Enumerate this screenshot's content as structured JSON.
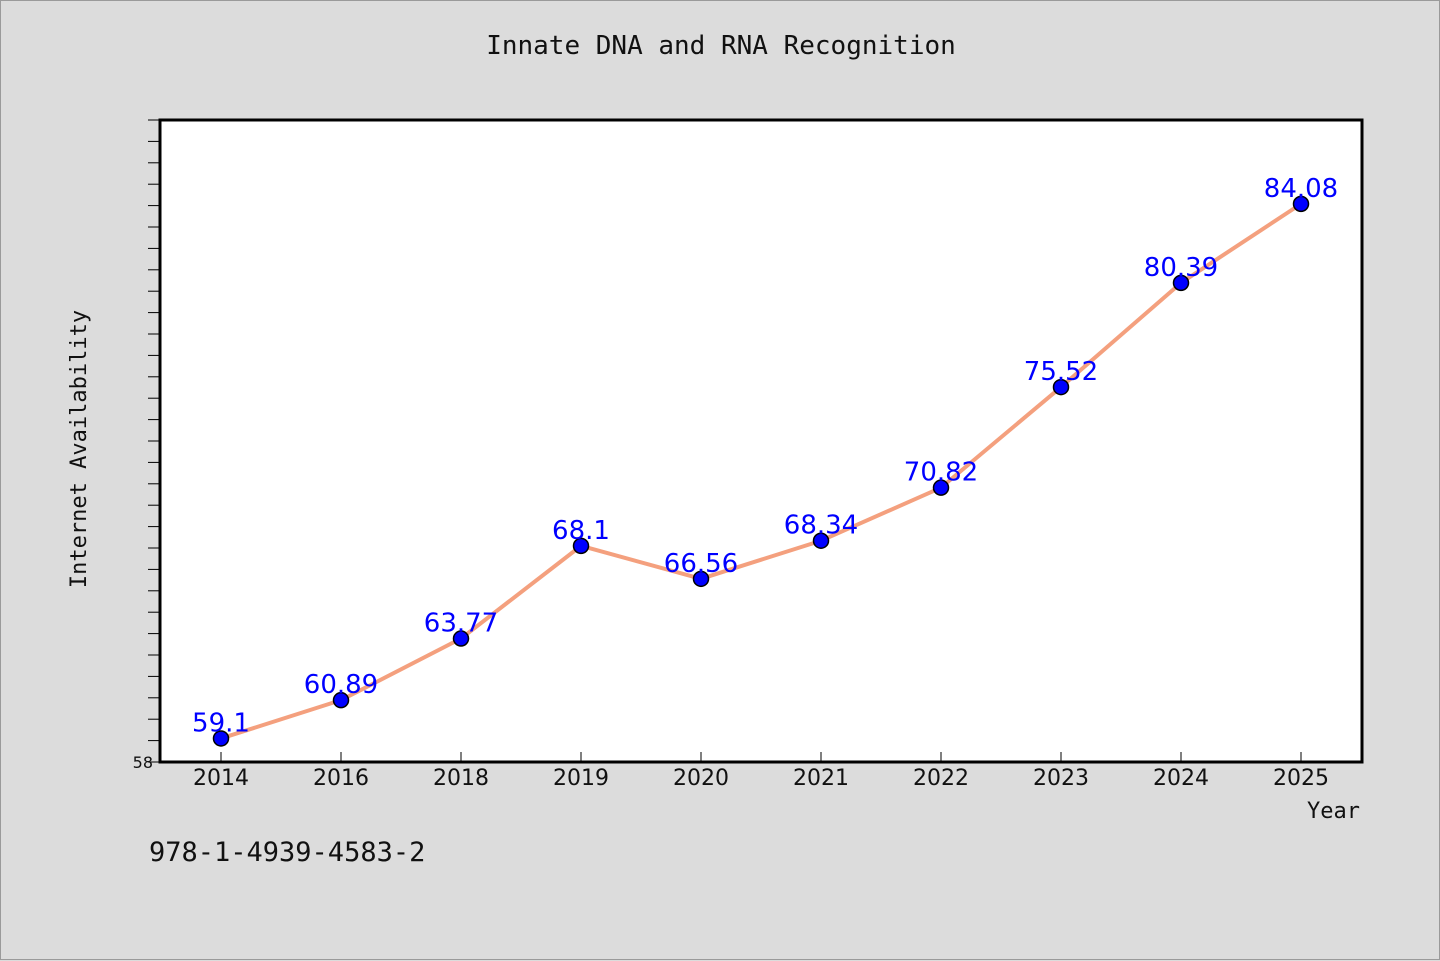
{
  "chart_data": {
    "type": "line",
    "title": "Innate DNA and RNA Recognition",
    "xlabel": "Year",
    "ylabel": "Internet Availability",
    "categories": [
      "2014",
      "2016",
      "2018",
      "2019",
      "2020",
      "2021",
      "2022",
      "2023",
      "2024",
      "2025"
    ],
    "series": [
      {
        "values": [
          59.1,
          60.89,
          63.77,
          68.1,
          66.56,
          68.34,
          70.82,
          75.52,
          80.39,
          84.08
        ]
      }
    ],
    "data_labels": [
      "59.1",
      "60.89",
      "63.77",
      "68.1",
      "66.56",
      "68.34",
      "70.82",
      "75.52",
      "80.39",
      "84.08"
    ],
    "ylim": [
      58,
      88
    ],
    "y_tick_labels": [
      "58"
    ],
    "grid": false,
    "legend": "none",
    "colors": {
      "line": "#f4a07e",
      "marker": "#0000ff",
      "label": "#0000ff",
      "background": "#dcdcdc",
      "plot": "#ffffff"
    }
  },
  "footer": {
    "isbn": "978-1-4939-4583-2"
  }
}
